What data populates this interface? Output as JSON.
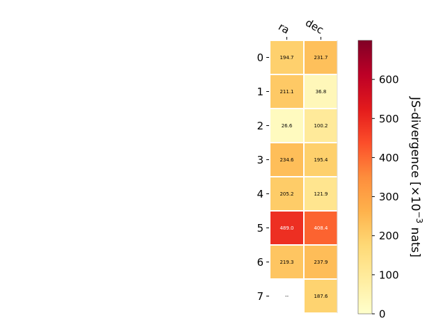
{
  "chart_data": {
    "type": "heatmap",
    "columns": [
      "ra",
      "dec"
    ],
    "rows": [
      "0",
      "1",
      "2",
      "3",
      "4",
      "5",
      "6",
      "7"
    ],
    "values": [
      [
        194.7,
        231.7
      ],
      [
        211.1,
        36.8
      ],
      [
        26.6,
        100.2
      ],
      [
        234.6,
        195.4
      ],
      [
        205.2,
        121.9
      ],
      [
        489.0,
        408.4
      ],
      [
        219.3,
        237.9
      ],
      [
        null,
        187.6
      ]
    ],
    "cell_labels": [
      [
        "194.7",
        "231.7"
      ],
      [
        "211.1",
        "36.8"
      ],
      [
        "26.6",
        "100.2"
      ],
      [
        "234.6",
        "195.4"
      ],
      [
        "205.2",
        "121.9"
      ],
      [
        "489.0",
        "408.4"
      ],
      [
        "219.3",
        "237.9"
      ],
      [
        "--",
        "187.6"
      ]
    ],
    "colorbar": {
      "label": "JS-divergence [×10",
      "label_exp": "−3",
      "label_tail": " nats]",
      "range": [
        0,
        700
      ],
      "ticks": [
        0,
        100,
        200,
        300,
        400,
        500,
        600
      ],
      "tick_labels": [
        "0",
        "100",
        "200",
        "300",
        "400",
        "500",
        "600"
      ],
      "colormap": "YlOrRd"
    }
  }
}
